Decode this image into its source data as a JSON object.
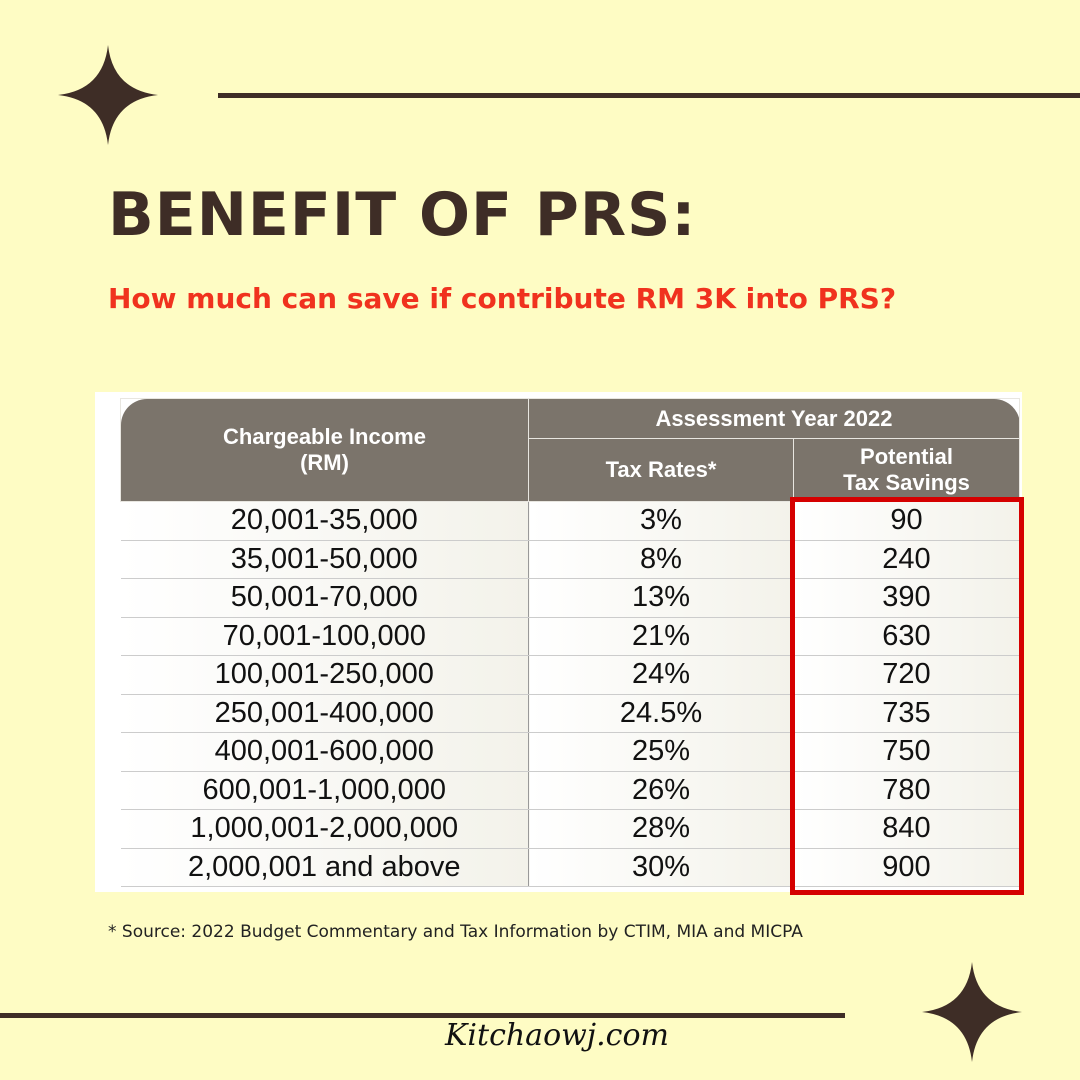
{
  "title": "BENEFIT OF PRS:",
  "subtitle": "How much can save if contribute RM 3K into PRS?",
  "table": {
    "header_group": "Assessment Year 2022",
    "columns": [
      "Chargeable Income (RM)",
      "Tax Rates*",
      "Potential Tax Savings"
    ],
    "col0_line1": "Chargeable Income",
    "col0_line2": "(RM)",
    "col2_line1": "Potential",
    "col2_line2": "Tax Savings",
    "rows": [
      [
        "20,001-35,000",
        "3%",
        "90"
      ],
      [
        "35,001-50,000",
        "8%",
        "240"
      ],
      [
        "50,001-70,000",
        "13%",
        "390"
      ],
      [
        "70,001-100,000",
        "21%",
        "630"
      ],
      [
        "100,001-250,000",
        "24%",
        "720"
      ],
      [
        "250,001-400,000",
        "24.5%",
        "735"
      ],
      [
        "400,001-600,000",
        "25%",
        "750"
      ],
      [
        "600,001-1,000,000",
        "26%",
        "780"
      ],
      [
        "1,000,001-2,000,000",
        "28%",
        "840"
      ],
      [
        "2,000,001 and above",
        "30%",
        "900"
      ]
    ]
  },
  "source": "* Source: 2022 Budget Commentary and Tax Information by CTIM, MIA and MICPA",
  "logo": "Kitchaowj.com",
  "colors": {
    "background": "#fefcc4",
    "dark": "#3e2d26",
    "accent_red": "#f0321e",
    "highlight_box": "#d50000",
    "header_gray": "#7b746b"
  }
}
